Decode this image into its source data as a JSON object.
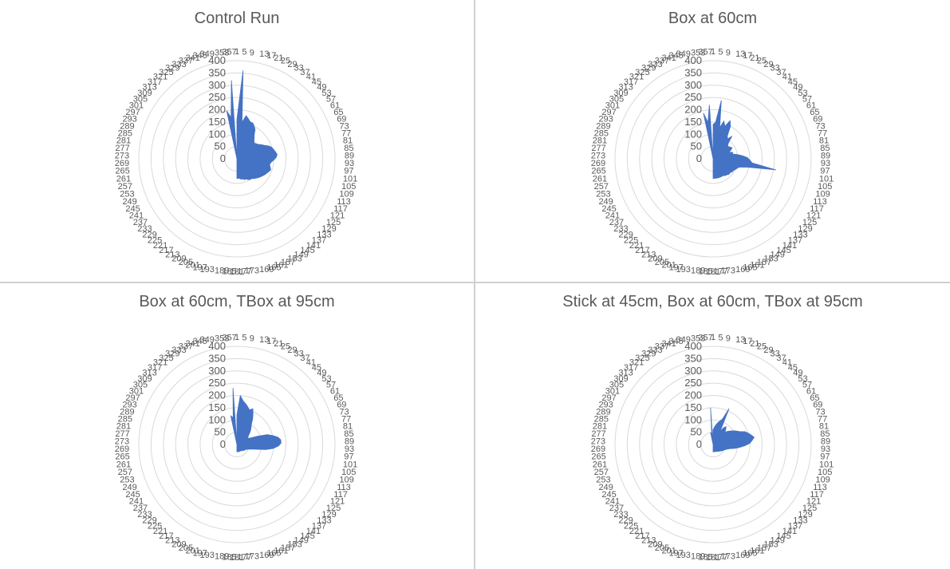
{
  "chart_data": [
    {
      "type": "radar",
      "title": "Control Run",
      "angle_labels": [
        "1",
        "5",
        "9",
        "13",
        "17",
        "21",
        "25",
        "29",
        "33",
        "37",
        "41",
        "45",
        "49",
        "53",
        "57",
        "61",
        "65",
        "69",
        "73",
        "77",
        "81",
        "85",
        "89",
        "93",
        "97",
        "101",
        "105",
        "109",
        "113",
        "117",
        "121",
        "125",
        "129",
        "133",
        "137",
        "141",
        "145",
        "149",
        "153",
        "157",
        "161",
        "165",
        "169",
        "173",
        "177",
        "181",
        "185",
        "189",
        "193",
        "197",
        "201",
        "205",
        "209",
        "213",
        "217",
        "221",
        "225",
        "229",
        "233",
        "237",
        "241",
        "245",
        "249",
        "253",
        "257",
        "261",
        "265",
        "269",
        "273",
        "277",
        "281",
        "285",
        "289",
        "293",
        "297",
        "301",
        "305",
        "309",
        "313",
        "317",
        "321",
        "325",
        "329",
        "333",
        "337",
        "341",
        "345",
        "349",
        "353",
        "357"
      ],
      "radial_ticks": [
        "0",
        "50",
        "100",
        "150",
        "200",
        "250",
        "300",
        "350",
        "400"
      ],
      "rmax": 400,
      "series": [
        {
          "color": "#4472C4",
          "theta": [
            1,
            5,
            9,
            13,
            17,
            21,
            25,
            29,
            33,
            37,
            41,
            45,
            49,
            53,
            57,
            61,
            65,
            69,
            73,
            77,
            81,
            85,
            89,
            93,
            97,
            101,
            105,
            109,
            113,
            117,
            121,
            125,
            129,
            133,
            137,
            141,
            145,
            149,
            153,
            157,
            161,
            165,
            169,
            173,
            177,
            181,
            185,
            189,
            193,
            197,
            201,
            205,
            209,
            213,
            217,
            221,
            225,
            229,
            233,
            237,
            241,
            245,
            249,
            253,
            257,
            261,
            265,
            269,
            273,
            277,
            281,
            285,
            289,
            293,
            297,
            301,
            305,
            309,
            313,
            317,
            321,
            325,
            329,
            333,
            337,
            341,
            345,
            349,
            353,
            357
          ],
          "values": [
            160,
            360,
            150,
            180,
            170,
            160,
            160,
            150,
            140,
            120,
            110,
            100,
            95,
            100,
            105,
            115,
            125,
            140,
            150,
            155,
            160,
            165,
            160,
            150,
            140,
            135,
            140,
            145,
            140,
            135,
            130,
            125,
            120,
            115,
            110,
            105,
            100,
            100,
            95,
            90,
            90,
            85,
            85,
            80,
            80,
            80,
            0,
            0,
            0,
            0,
            0,
            0,
            0,
            0,
            0,
            0,
            0,
            0,
            0,
            0,
            0,
            0,
            0,
            0,
            0,
            0,
            0,
            0,
            0,
            0,
            0,
            0,
            0,
            0,
            0,
            0,
            0,
            0,
            0,
            0,
            0,
            0,
            0,
            0,
            0,
            0,
            0,
            200,
            170,
            320
          ]
        }
      ]
    },
    {
      "type": "radar",
      "title": "Box at 60cm",
      "angle_labels": [
        "1",
        "5",
        "9",
        "13",
        "17",
        "21",
        "25",
        "29",
        "33",
        "37",
        "41",
        "45",
        "49",
        "53",
        "57",
        "61",
        "65",
        "69",
        "73",
        "77",
        "81",
        "85",
        "89",
        "93",
        "97",
        "101",
        "105",
        "109",
        "113",
        "117",
        "121",
        "125",
        "129",
        "133",
        "137",
        "141",
        "145",
        "149",
        "153",
        "157",
        "161",
        "165",
        "169",
        "173",
        "177",
        "181",
        "185",
        "189",
        "193",
        "197",
        "201",
        "205",
        "209",
        "213",
        "217",
        "221",
        "225",
        "229",
        "233",
        "237",
        "241",
        "245",
        "249",
        "253",
        "257",
        "261",
        "265",
        "269",
        "273",
        "277",
        "281",
        "285",
        "289",
        "293",
        "297",
        "301",
        "305",
        "309",
        "313",
        "317",
        "321",
        "325",
        "329",
        "333",
        "337",
        "341",
        "345",
        "349",
        "353",
        "357"
      ],
      "radial_ticks": [
        "0",
        "50",
        "100",
        "150",
        "200",
        "250",
        "300",
        "350",
        "400"
      ],
      "rmax": 400,
      "series": [
        {
          "color": "#4472C4",
          "theta": [
            1,
            5,
            9,
            13,
            17,
            21,
            25,
            29,
            33,
            37,
            41,
            45,
            49,
            53,
            57,
            61,
            65,
            69,
            73,
            77,
            81,
            85,
            89,
            93,
            97,
            101,
            105,
            109,
            113,
            117,
            121,
            125,
            129,
            133,
            137,
            141,
            145,
            149,
            153,
            157,
            161,
            165,
            169,
            173,
            177,
            181,
            185,
            189,
            193,
            197,
            201,
            205,
            209,
            213,
            217,
            221,
            225,
            229,
            233,
            237,
            241,
            245,
            249,
            253,
            257,
            261,
            265,
            269,
            273,
            277,
            281,
            285,
            289,
            293,
            297,
            301,
            305,
            309,
            313,
            317,
            321,
            325,
            329,
            333,
            337,
            341,
            345,
            349,
            353,
            357
          ],
          "values": [
            140,
            150,
            240,
            130,
            160,
            140,
            170,
            150,
            110,
            100,
            120,
            90,
            80,
            80,
            85,
            90,
            80,
            70,
            85,
            80,
            100,
            120,
            140,
            150,
            160,
            260,
            140,
            110,
            105,
            100,
            95,
            95,
            90,
            90,
            90,
            85,
            85,
            80,
            80,
            80,
            80,
            80,
            80,
            80,
            80,
            80,
            0,
            0,
            0,
            0,
            0,
            0,
            0,
            0,
            0,
            0,
            0,
            0,
            0,
            0,
            0,
            0,
            0,
            0,
            0,
            0,
            0,
            0,
            0,
            0,
            0,
            0,
            0,
            0,
            0,
            0,
            0,
            0,
            0,
            0,
            0,
            0,
            0,
            0,
            0,
            0,
            0,
            190,
            150,
            220
          ]
        }
      ]
    },
    {
      "type": "radar",
      "title": "Box at 60cm, TBox at 95cm",
      "angle_labels": [
        "1",
        "5",
        "9",
        "13",
        "17",
        "21",
        "25",
        "29",
        "33",
        "37",
        "41",
        "45",
        "49",
        "53",
        "57",
        "61",
        "65",
        "69",
        "73",
        "77",
        "81",
        "85",
        "89",
        "93",
        "97",
        "101",
        "105",
        "109",
        "113",
        "117",
        "121",
        "125",
        "129",
        "133",
        "137",
        "141",
        "145",
        "149",
        "153",
        "157",
        "161",
        "165",
        "169",
        "173",
        "177",
        "181",
        "185",
        "189",
        "193",
        "197",
        "201",
        "205",
        "209",
        "213",
        "217",
        "221",
        "225",
        "229",
        "233",
        "237",
        "241",
        "245",
        "249",
        "253",
        "257",
        "261",
        "265",
        "269",
        "273",
        "277",
        "281",
        "285",
        "289",
        "293",
        "297",
        "301",
        "305",
        "309",
        "313",
        "317",
        "321",
        "325",
        "329",
        "333",
        "337",
        "341",
        "345",
        "349",
        "353",
        "357"
      ],
      "radial_ticks": [
        "0",
        "50",
        "100",
        "150",
        "200",
        "250",
        "300",
        "350",
        "400"
      ],
      "rmax": 400,
      "series": [
        {
          "color": "#4472C4",
          "theta": [
            1,
            5,
            9,
            13,
            17,
            21,
            25,
            29,
            33,
            37,
            41,
            45,
            49,
            53,
            57,
            61,
            65,
            69,
            73,
            77,
            81,
            85,
            89,
            93,
            97,
            101,
            105,
            109,
            113,
            117,
            121,
            125,
            129,
            133,
            137,
            141,
            145,
            149,
            153,
            157,
            161,
            165,
            169,
            173,
            177,
            181,
            185,
            189,
            193,
            197,
            201,
            205,
            209,
            213,
            217,
            221,
            225,
            229,
            233,
            237,
            241,
            245,
            249,
            253,
            257,
            261,
            265,
            269,
            273,
            277,
            281,
            285,
            289,
            293,
            297,
            301,
            305,
            309,
            313,
            317,
            321,
            325,
            329,
            333,
            337,
            341,
            345,
            349,
            353,
            357
          ],
          "values": [
            120,
            200,
            180,
            170,
            160,
            150,
            160,
            140,
            120,
            100,
            90,
            80,
            70,
            60,
            55,
            50,
            60,
            90,
            130,
            150,
            170,
            180,
            180,
            170,
            150,
            120,
            80,
            60,
            50,
            45,
            40,
            40,
            38,
            35,
            35,
            33,
            30,
            30,
            30,
            30,
            30,
            30,
            30,
            30,
            30,
            30,
            0,
            0,
            0,
            0,
            0,
            0,
            0,
            0,
            0,
            0,
            0,
            0,
            0,
            0,
            0,
            0,
            0,
            0,
            0,
            0,
            0,
            0,
            0,
            0,
            0,
            0,
            0,
            0,
            0,
            0,
            0,
            0,
            0,
            0,
            0,
            0,
            0,
            0,
            0,
            0,
            0,
            120,
            110,
            230
          ]
        }
      ]
    },
    {
      "type": "radar",
      "title": "Stick at 45cm, Box at 60cm, TBox at 95cm",
      "angle_labels": [
        "1",
        "5",
        "9",
        "13",
        "17",
        "21",
        "25",
        "29",
        "33",
        "37",
        "41",
        "45",
        "49",
        "53",
        "57",
        "61",
        "65",
        "69",
        "73",
        "77",
        "81",
        "85",
        "89",
        "93",
        "97",
        "101",
        "105",
        "109",
        "113",
        "117",
        "121",
        "125",
        "129",
        "133",
        "137",
        "141",
        "145",
        "149",
        "153",
        "157",
        "161",
        "165",
        "169",
        "173",
        "177",
        "181",
        "185",
        "189",
        "193",
        "197",
        "201",
        "205",
        "209",
        "213",
        "217",
        "221",
        "225",
        "229",
        "233",
        "237",
        "241",
        "245",
        "249",
        "253",
        "257",
        "261",
        "265",
        "269",
        "273",
        "277",
        "281",
        "285",
        "289",
        "293",
        "297",
        "301",
        "305",
        "309",
        "313",
        "317",
        "321",
        "325",
        "329",
        "333",
        "337",
        "341",
        "345",
        "349",
        "353",
        "357"
      ],
      "radial_ticks": [
        "0",
        "50",
        "100",
        "150",
        "200",
        "250",
        "300",
        "350",
        "400"
      ],
      "rmax": 400,
      "series": [
        {
          "color": "#4472C4",
          "theta": [
            1,
            5,
            9,
            13,
            17,
            21,
            25,
            29,
            33,
            37,
            41,
            45,
            49,
            53,
            57,
            61,
            65,
            69,
            73,
            77,
            81,
            85,
            89,
            93,
            97,
            101,
            105,
            109,
            113,
            117,
            121,
            125,
            129,
            133,
            137,
            141,
            145,
            149,
            153,
            157,
            161,
            165,
            169,
            173,
            177,
            181,
            185,
            189,
            193,
            197,
            201,
            205,
            209,
            213,
            217,
            221,
            225,
            229,
            233,
            237,
            241,
            245,
            249,
            253,
            257,
            261,
            265,
            269,
            273,
            277,
            281,
            285,
            289,
            293,
            297,
            301,
            305,
            309,
            313,
            317,
            321,
            325,
            329,
            333,
            337,
            341,
            345,
            349,
            353,
            357
          ],
          "values": [
            60,
            70,
            80,
            90,
            100,
            110,
            160,
            60,
            80,
            90,
            80,
            70,
            80,
            90,
            100,
            110,
            120,
            140,
            150,
            160,
            170,
            160,
            150,
            130,
            110,
            90,
            70,
            60,
            55,
            50,
            48,
            45,
            42,
            40,
            38,
            36,
            34,
            33,
            32,
            31,
            30,
            30,
            30,
            30,
            30,
            30,
            0,
            0,
            0,
            0,
            0,
            0,
            0,
            0,
            0,
            0,
            0,
            0,
            0,
            0,
            0,
            0,
            0,
            0,
            0,
            0,
            0,
            0,
            0,
            0,
            0,
            0,
            0,
            0,
            0,
            0,
            0,
            0,
            0,
            0,
            0,
            0,
            0,
            0,
            0,
            0,
            0,
            50,
            40,
            150
          ]
        }
      ]
    }
  ]
}
